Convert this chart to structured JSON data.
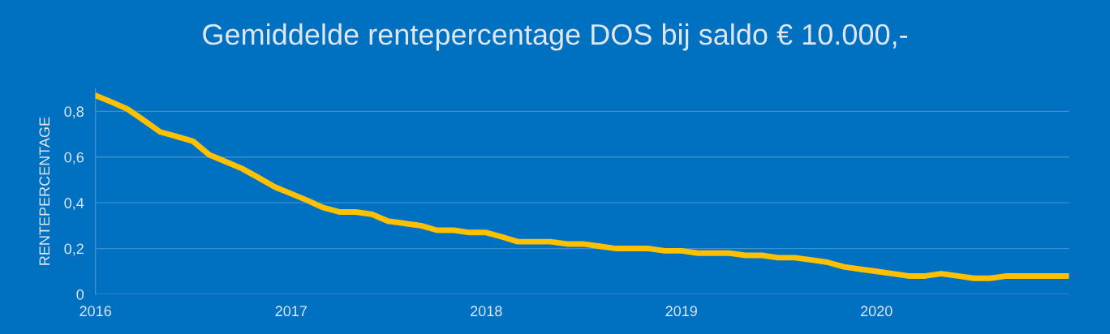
{
  "chart_data": {
    "type": "line",
    "title": "Gemiddelde rentepercentage DOS bij saldo € 10.000,-",
    "ylabel": "RENTEPERCENTAGE",
    "x": [
      "2016-01",
      "2016-02",
      "2016-03",
      "2016-04",
      "2016-05",
      "2016-06",
      "2016-07",
      "2016-08",
      "2016-09",
      "2016-10",
      "2016-11",
      "2016-12",
      "2017-01",
      "2017-02",
      "2017-03",
      "2017-04",
      "2017-05",
      "2017-06",
      "2017-07",
      "2017-08",
      "2017-09",
      "2017-10",
      "2017-11",
      "2017-12",
      "2018-01",
      "2018-02",
      "2018-03",
      "2018-04",
      "2018-05",
      "2018-06",
      "2018-07",
      "2018-08",
      "2018-09",
      "2018-10",
      "2018-11",
      "2018-12",
      "2019-01",
      "2019-02",
      "2019-03",
      "2019-04",
      "2019-05",
      "2019-06",
      "2019-07",
      "2019-08",
      "2019-09",
      "2019-10",
      "2019-11",
      "2019-12",
      "2020-01",
      "2020-02",
      "2020-03",
      "2020-04",
      "2020-05",
      "2020-06",
      "2020-07",
      "2020-08",
      "2020-09",
      "2020-10",
      "2020-11",
      "2020-12",
      "2020-12-24"
    ],
    "series": [
      {
        "color": "#ffc000",
        "values": [
          0.87,
          0.84,
          0.81,
          0.76,
          0.71,
          0.69,
          0.67,
          0.61,
          0.58,
          0.55,
          0.51,
          0.47,
          0.44,
          0.41,
          0.38,
          0.36,
          0.36,
          0.35,
          0.32,
          0.31,
          0.3,
          0.28,
          0.28,
          0.27,
          0.27,
          0.25,
          0.23,
          0.23,
          0.23,
          0.22,
          0.22,
          0.21,
          0.2,
          0.2,
          0.2,
          0.19,
          0.19,
          0.18,
          0.18,
          0.18,
          0.17,
          0.17,
          0.16,
          0.16,
          0.15,
          0.14,
          0.12,
          0.11,
          0.1,
          0.09,
          0.08,
          0.08,
          0.09,
          0.08,
          0.07,
          0.07,
          0.08,
          0.08,
          0.08,
          0.08,
          0.08
        ]
      }
    ],
    "xlim": [
      "2016-01-01",
      "2020-12-26"
    ],
    "xticks": [
      "2016",
      "2017",
      "2018",
      "2019",
      "2020"
    ],
    "ylim": [
      0,
      0.9
    ],
    "yticks": [
      0,
      {
        "value": 0.2,
        "label": "0,2"
      },
      {
        "value": 0.4,
        "label": "0,4"
      },
      {
        "value": 0.6,
        "label": "0,6"
      },
      {
        "value": 0.8,
        "label": "0,8"
      }
    ],
    "grid": "y",
    "line_style": "solid"
  }
}
